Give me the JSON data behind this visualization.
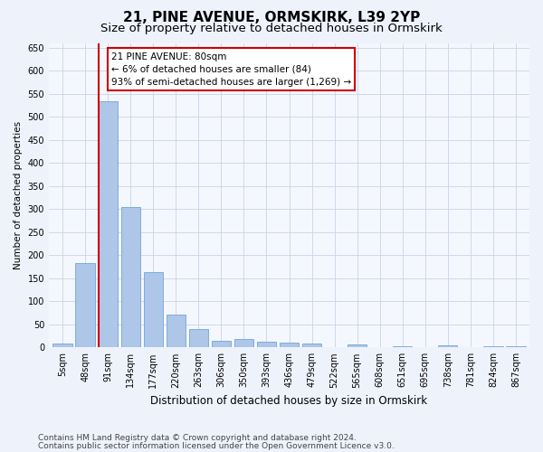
{
  "title1": "21, PINE AVENUE, ORMSKIRK, L39 2YP",
  "title2": "Size of property relative to detached houses in Ormskirk",
  "xlabel": "Distribution of detached houses by size in Ormskirk",
  "ylabel": "Number of detached properties",
  "categories": [
    "5sqm",
    "48sqm",
    "91sqm",
    "134sqm",
    "177sqm",
    "220sqm",
    "263sqm",
    "306sqm",
    "350sqm",
    "393sqm",
    "436sqm",
    "479sqm",
    "522sqm",
    "565sqm",
    "608sqm",
    "651sqm",
    "695sqm",
    "738sqm",
    "781sqm",
    "824sqm",
    "867sqm"
  ],
  "values": [
    8,
    183,
    533,
    305,
    163,
    72,
    40,
    15,
    18,
    12,
    10,
    8,
    0,
    6,
    0,
    3,
    0,
    4,
    0,
    3,
    2
  ],
  "bar_color": "#aec6e8",
  "bar_edgecolor": "#5b9bd5",
  "highlight_color": "#cc0000",
  "annotation_text": "21 PINE AVENUE: 80sqm\n← 6% of detached houses are smaller (84)\n93% of semi-detached houses are larger (1,269) →",
  "annotation_box_color": "#ffffff",
  "annotation_border_color": "#cc0000",
  "ylim": [
    0,
    660
  ],
  "yticks": [
    0,
    50,
    100,
    150,
    200,
    250,
    300,
    350,
    400,
    450,
    500,
    550,
    600,
    650
  ],
  "footer1": "Contains HM Land Registry data © Crown copyright and database right 2024.",
  "footer2": "Contains public sector information licensed under the Open Government Licence v3.0.",
  "bg_color": "#eef2fb",
  "plot_bg_color": "#f5f7fe",
  "grid_color": "#c8d4e8",
  "title1_fontsize": 11,
  "title2_fontsize": 9.5,
  "xlabel_fontsize": 8.5,
  "ylabel_fontsize": 7.5,
  "tick_fontsize": 7,
  "annotation_fontsize": 7.5,
  "footer_fontsize": 6.5
}
